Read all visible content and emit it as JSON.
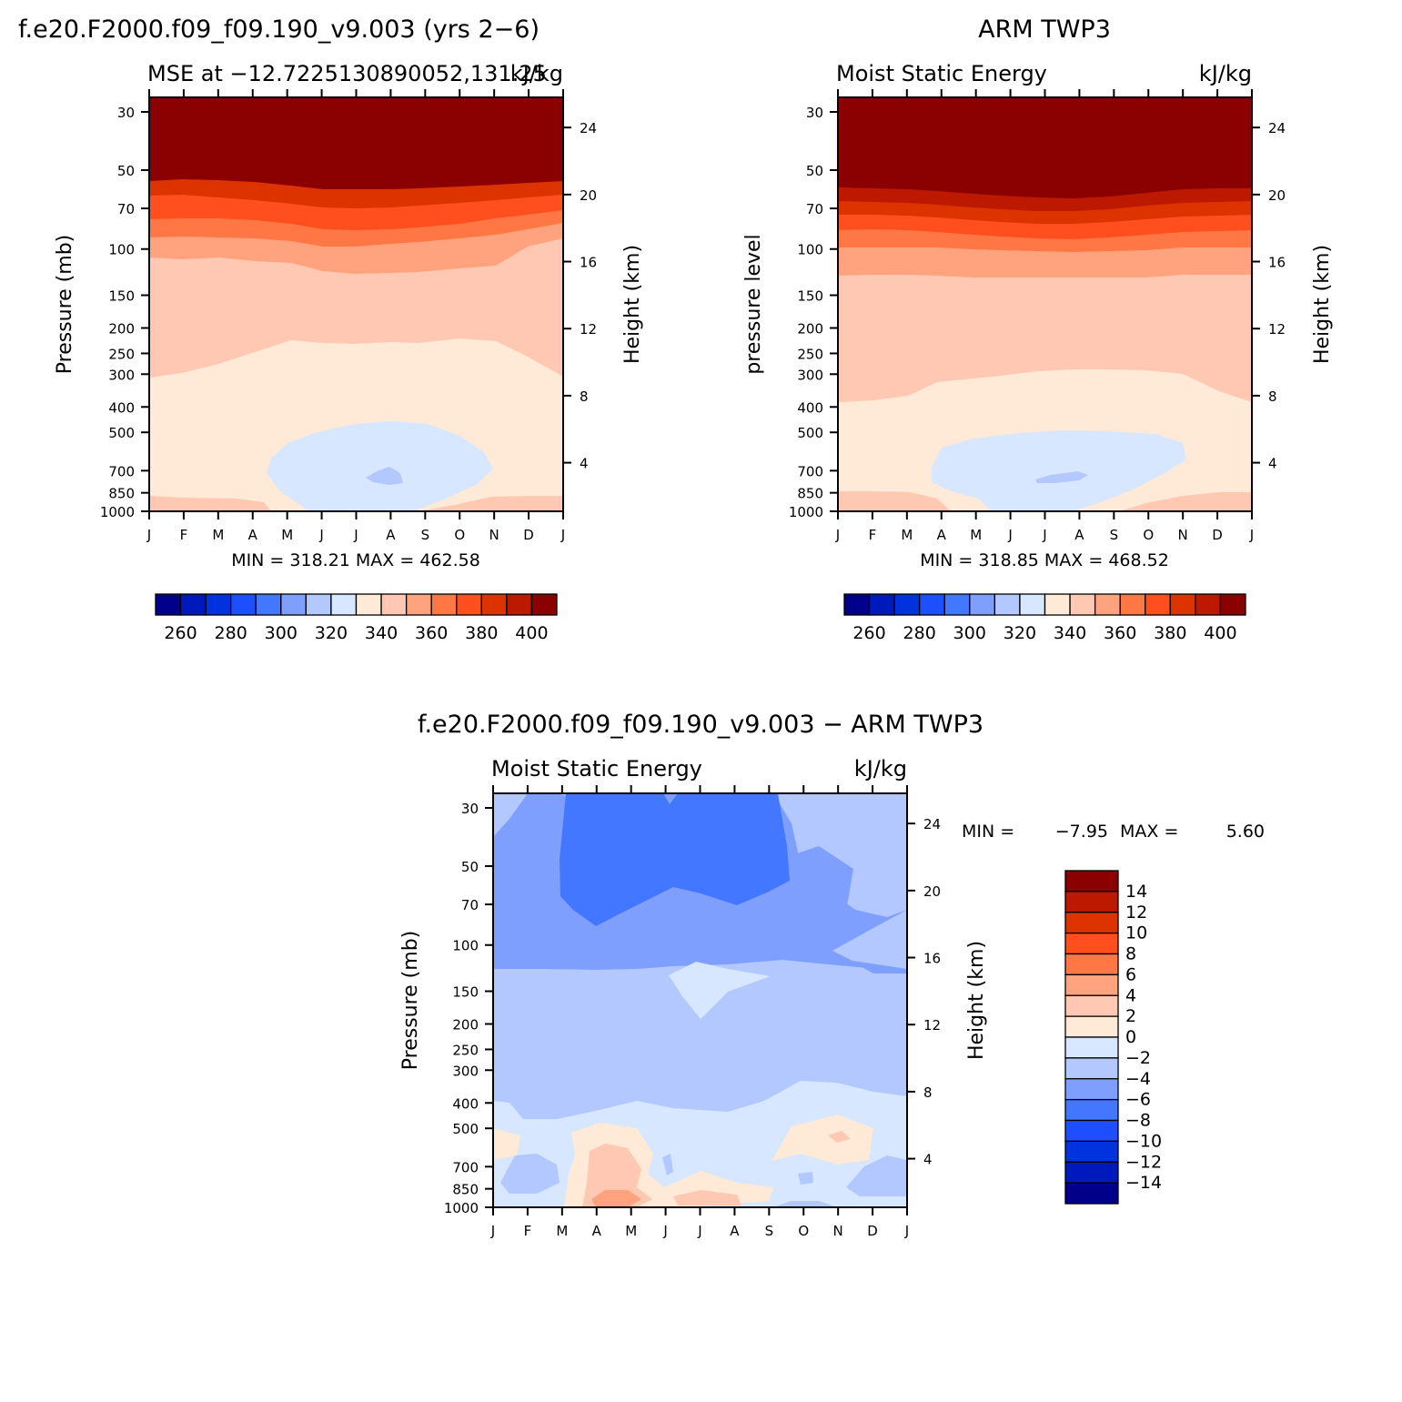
{
  "figure": {
    "model_title": "f.e20.F2000.f09_f09.190_v9.003 (yrs 2−6)",
    "obs_title": "ARM TWP3",
    "diff_title": "f.e20.F2000.f09_f09.190_v9.003 − ARM TWP3"
  },
  "chart_data": [
    {
      "type": "heatmap",
      "id": "model",
      "left_title": "MSE at −12.7225130890052,131.25",
      "right_title": "kJ/kg",
      "ylabel": "Pressure (mb)",
      "ylabel_right": "Height (km)",
      "x_ticks": [
        "J",
        "F",
        "M",
        "A",
        "M",
        "J",
        "J",
        "A",
        "S",
        "O",
        "N",
        "D",
        "J"
      ],
      "y_ticks": [
        "30",
        "50",
        "70",
        "100",
        "150",
        "200",
        "250",
        "300",
        "400",
        "500",
        "700",
        "850",
        "1000"
      ],
      "y_ticks_right": [
        "24",
        "20",
        "16",
        "12",
        "8",
        "4"
      ],
      "min_max": "MIN = 318.21 MAX = 462.58",
      "levels": [
        260,
        270,
        280,
        290,
        300,
        310,
        320,
        330,
        340,
        350,
        360,
        370,
        380,
        390,
        400
      ],
      "colorbar_labels": [
        "260",
        "280",
        "300",
        "320",
        "340",
        "360",
        "380",
        "400"
      ],
      "min": 318.21,
      "max": 462.58
    },
    {
      "type": "heatmap",
      "id": "obs",
      "left_title": "Moist Static Energy",
      "right_title": "kJ/kg",
      "ylabel": "pressure level",
      "ylabel_right": "Height (km)",
      "x_ticks": [
        "J",
        "F",
        "M",
        "A",
        "M",
        "J",
        "J",
        "A",
        "S",
        "O",
        "N",
        "D",
        "J"
      ],
      "y_ticks": [
        "30",
        "50",
        "70",
        "100",
        "150",
        "200",
        "250",
        "300",
        "400",
        "500",
        "700",
        "850",
        "1000"
      ],
      "y_ticks_right": [
        "24",
        "20",
        "16",
        "12",
        "8",
        "4"
      ],
      "min_max": "MIN = 318.85 MAX = 468.52",
      "levels": [
        260,
        270,
        280,
        290,
        300,
        310,
        320,
        330,
        340,
        350,
        360,
        370,
        380,
        390,
        400
      ],
      "colorbar_labels": [
        "260",
        "280",
        "300",
        "320",
        "340",
        "360",
        "380",
        "400"
      ],
      "min": 318.85,
      "max": 468.52
    },
    {
      "type": "heatmap",
      "id": "diff",
      "left_title": "Moist Static Energy",
      "right_title": "kJ/kg",
      "ylabel": "Pressure (mb)",
      "ylabel_right": "Height (km)",
      "x_ticks": [
        "J",
        "F",
        "M",
        "A",
        "M",
        "J",
        "J",
        "A",
        "S",
        "O",
        "N",
        "D",
        "J"
      ],
      "y_ticks": [
        "30",
        "50",
        "70",
        "100",
        "150",
        "200",
        "250",
        "300",
        "400",
        "500",
        "700",
        "850",
        "1000"
      ],
      "y_ticks_right": [
        "24",
        "20",
        "16",
        "12",
        "8",
        "4"
      ],
      "min_label": "MIN =",
      "min_value": "−7.95",
      "max_label": "MAX =",
      "max_value": "5.60",
      "levels": [
        -14,
        -12,
        -10,
        -8,
        -6,
        -4,
        -2,
        0,
        2,
        4,
        6,
        8,
        10,
        12,
        14
      ],
      "colorbar_labels": [
        "14",
        "12",
        "10",
        "8",
        "6",
        "4",
        "2",
        "0",
        "−2",
        "−4",
        "−6",
        "−8",
        "−10",
        "−12",
        "−14"
      ],
      "min": -7.95,
      "max": 5.6
    }
  ],
  "palette": [
    "#00008b",
    "#0019bd",
    "#0033dd",
    "#1e4fff",
    "#4477ff",
    "#7f9fff",
    "#b2c8ff",
    "#d7e7ff",
    "#ffe9d7",
    "#ffc8b2",
    "#ffa37f",
    "#ff7744",
    "#ff4f1e",
    "#dd3300",
    "#bd1900",
    "#8b0000"
  ]
}
